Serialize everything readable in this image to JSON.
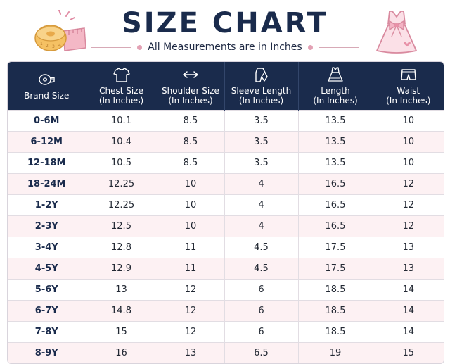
{
  "header": {
    "title": "SIZE CHART",
    "subtitle": "All Measurements are in Inches",
    "accent_color": "#1a2b4c",
    "pink_color": "#e3a1b4",
    "left_icon": "measuring-tape-icon",
    "right_icon": "dress-icon"
  },
  "table": {
    "columns": [
      {
        "label": "Brand Size",
        "unit": "",
        "icon": "measuring-tape-icon"
      },
      {
        "label": "Chest Size",
        "unit": "(In Inches)",
        "icon": "tshirt-icon"
      },
      {
        "label": "Shoulder Size",
        "unit": "(In Inches)",
        "icon": "double-arrow-icon"
      },
      {
        "label": "Sleeve Length",
        "unit": "(In Inches)",
        "icon": "sleeve-icon"
      },
      {
        "label": "Length",
        "unit": "(In Inches)",
        "icon": "dress-icon"
      },
      {
        "label": "Waist",
        "unit": "(In Inches)",
        "icon": "shorts-icon"
      }
    ],
    "rows": [
      [
        "0-6M",
        "10.1",
        "8.5",
        "3.5",
        "13.5",
        "10"
      ],
      [
        "6-12M",
        "10.4",
        "8.5",
        "3.5",
        "13.5",
        "10"
      ],
      [
        "12-18M",
        "10.5",
        "8.5",
        "3.5",
        "13.5",
        "10"
      ],
      [
        "18-24M",
        "12.25",
        "10",
        "4",
        "16.5",
        "12"
      ],
      [
        "1-2Y",
        "12.25",
        "10",
        "4",
        "16.5",
        "12"
      ],
      [
        "2-3Y",
        "12.5",
        "10",
        "4",
        "16.5",
        "12"
      ],
      [
        "3-4Y",
        "12.8",
        "11",
        "4.5",
        "17.5",
        "13"
      ],
      [
        "4-5Y",
        "12.9",
        "11",
        "4.5",
        "17.5",
        "13"
      ],
      [
        "5-6Y",
        "13",
        "12",
        "6",
        "18.5",
        "14"
      ],
      [
        "6-7Y",
        "14.8",
        "12",
        "6",
        "18.5",
        "14"
      ],
      [
        "7-8Y",
        "15",
        "12",
        "6",
        "18.5",
        "14"
      ],
      [
        "8-9Y",
        "16",
        "13",
        "6.5",
        "19",
        "15"
      ]
    ]
  }
}
